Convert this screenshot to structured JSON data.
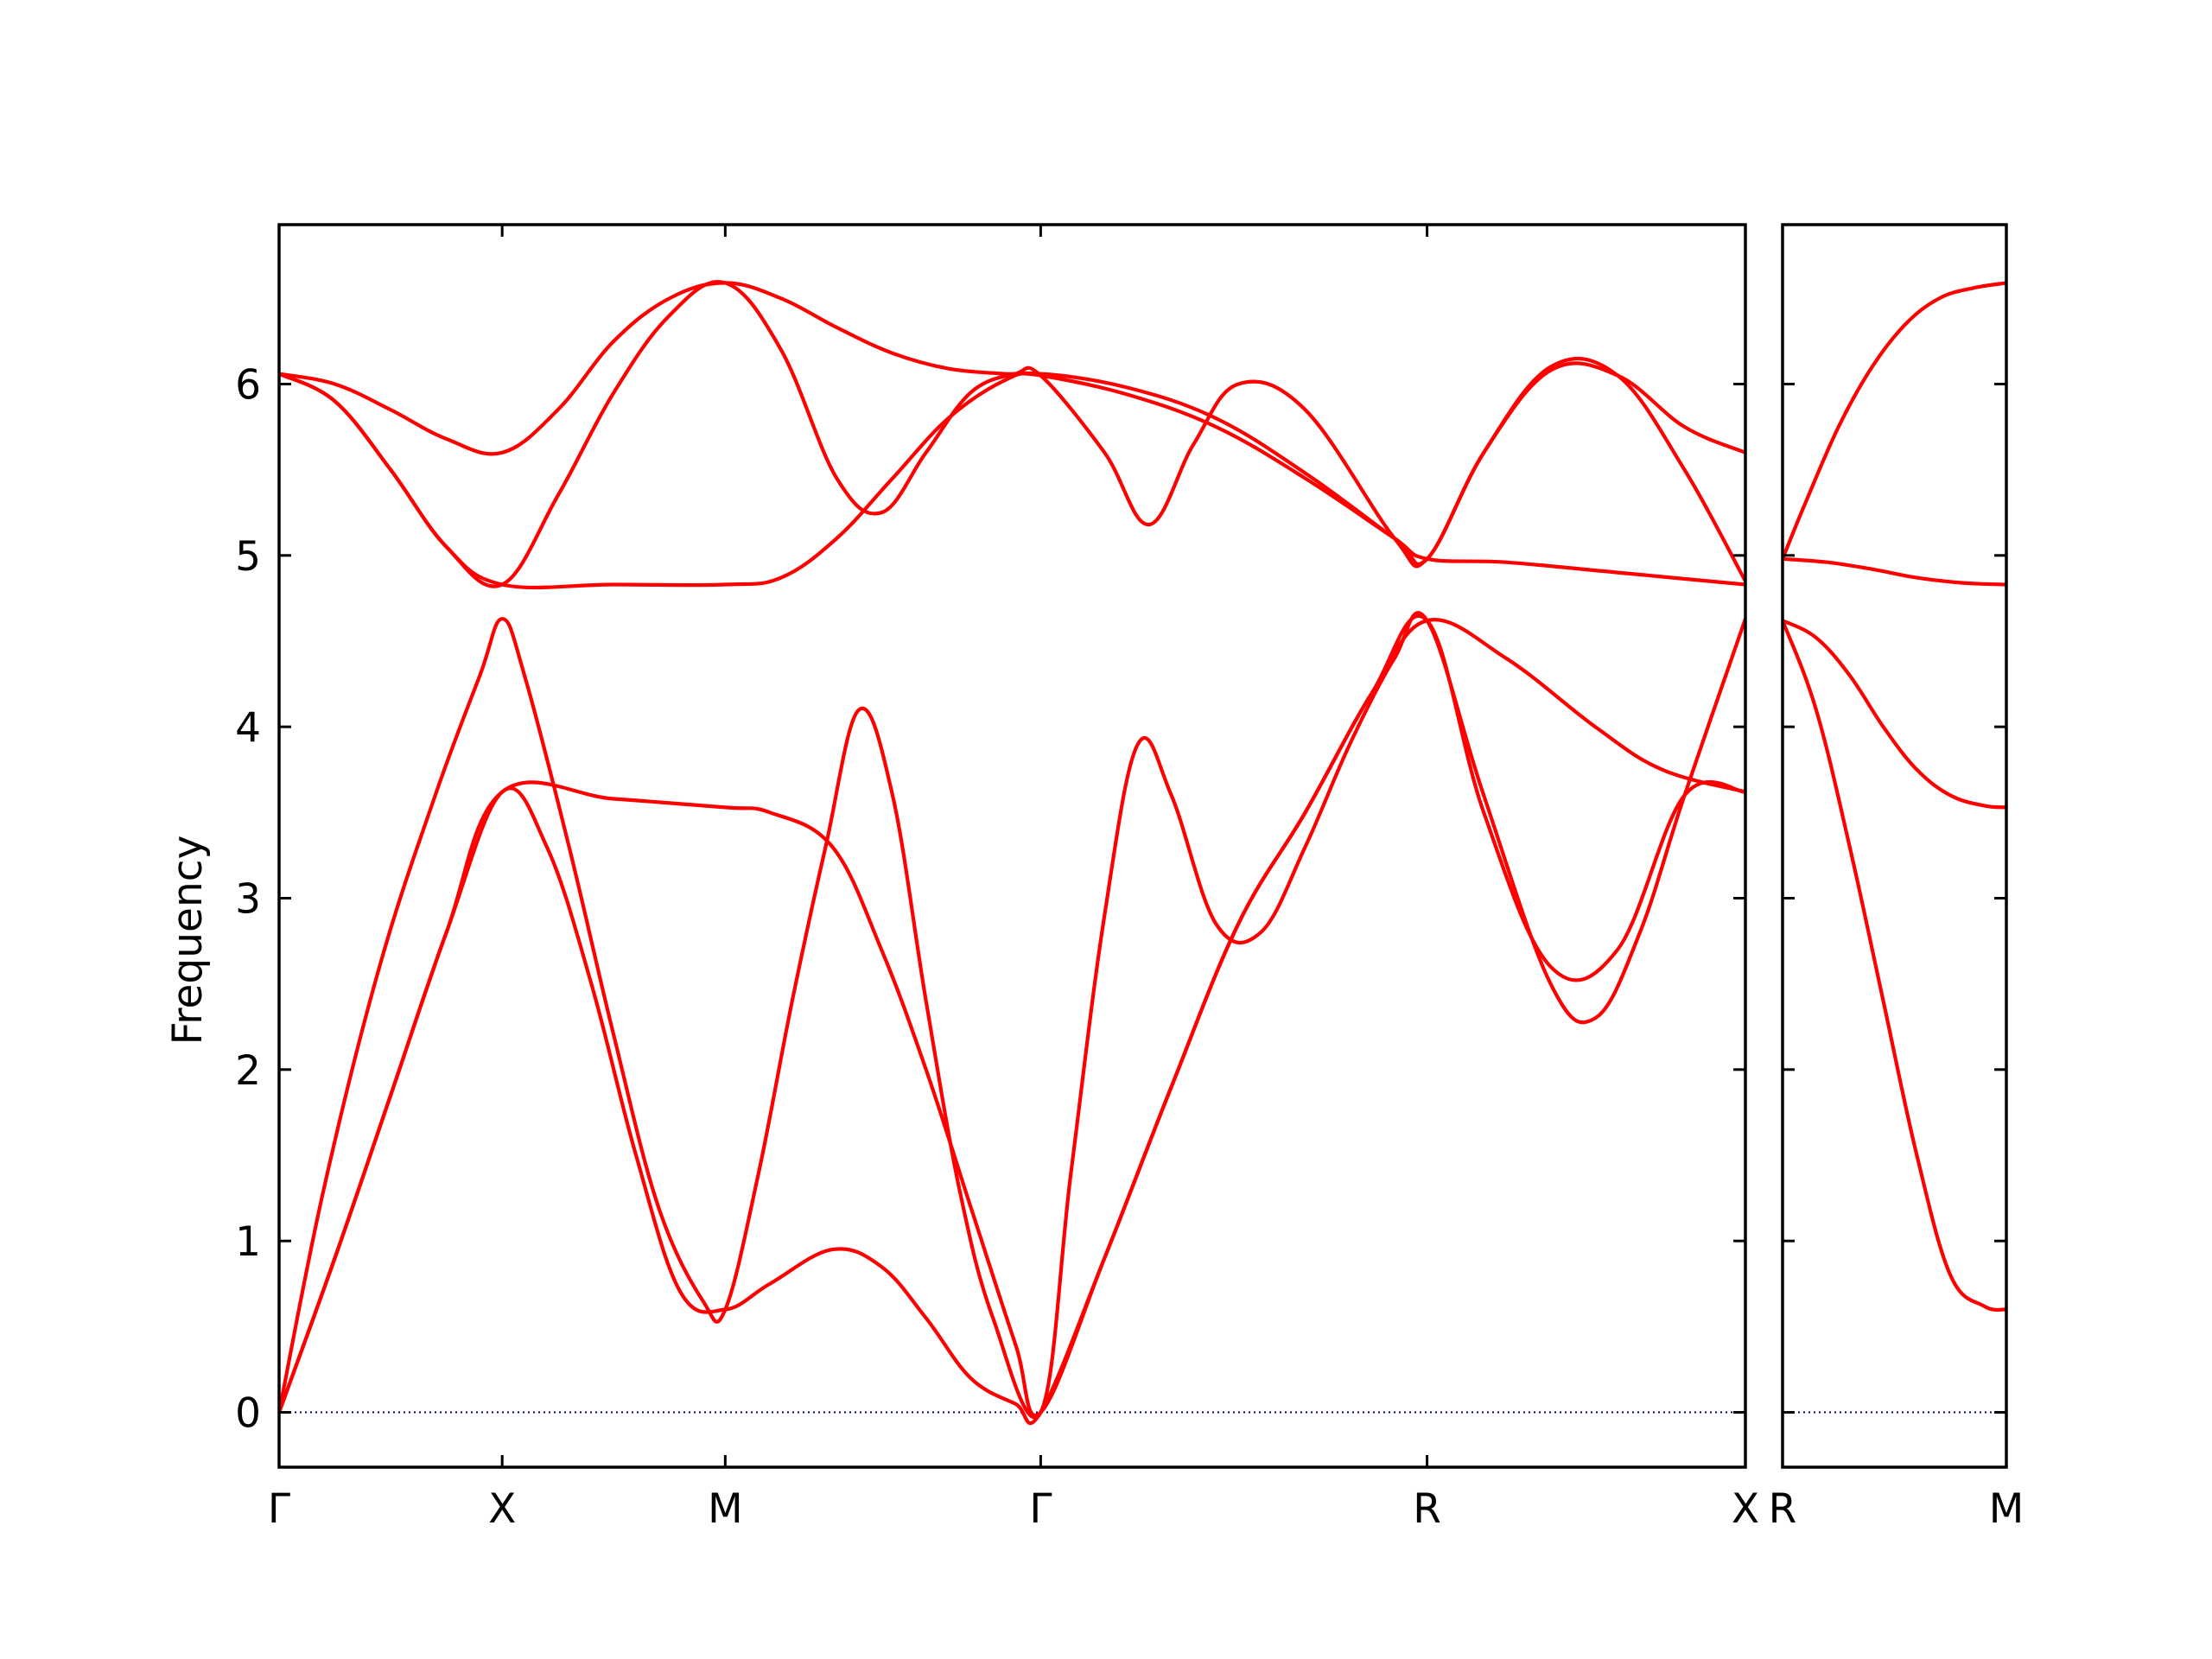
{
  "chart_data": {
    "type": "line",
    "ylabel": "Frequency",
    "ylim": [
      -0.32,
      6.93
    ],
    "yticks": [
      0,
      1,
      2,
      3,
      4,
      5,
      6
    ],
    "grid": false,
    "colors": {
      "bands": "#ff0000",
      "zero_line": "#00008b",
      "axes": "#000000"
    },
    "panels": [
      {
        "xlim": [
          0,
          6.573
        ],
        "xticks": [
          {
            "x": 0,
            "label": "Γ"
          },
          {
            "x": 1.0,
            "label": "X"
          },
          {
            "x": 2.0,
            "label": "M"
          },
          {
            "x": 3.414,
            "label": "Γ"
          },
          {
            "x": 5.146,
            "label": "R"
          },
          {
            "x": 6.573,
            "label": "X"
          }
        ],
        "series": [
          {
            "x": [
              0,
              0.25,
              0.5,
              0.75,
              1.0,
              1.25,
              1.5,
              1.75,
              2.0,
              2.25,
              2.5,
              2.75,
              3.0,
              3.25,
              3.414,
              3.8,
              4.2,
              4.6,
              5.0,
              5.146,
              5.4,
              5.7,
              6.0,
              6.3,
              6.573
            ],
            "values": [
              6.06,
              6.0,
              5.85,
              5.68,
              5.6,
              5.85,
              6.25,
              6.5,
              6.59,
              6.5,
              6.33,
              6.18,
              6.09,
              6.06,
              6.05,
              5.94,
              5.75,
              5.45,
              5.1,
              4.98,
              5.6,
              6.08,
              6.05,
              5.75,
              5.6
            ]
          },
          {
            "x": [
              0,
              0.25,
              0.5,
              0.75,
              1.0,
              1.25,
              1.5,
              1.75,
              2.0,
              2.25,
              2.5,
              2.7,
              2.9,
              3.1,
              3.3,
              3.414,
              3.7,
              3.9,
              4.1,
              4.3,
              4.6,
              5.0,
              5.146,
              5.4,
              5.7,
              6.0,
              6.3,
              6.573
            ],
            "values": [
              6.06,
              5.9,
              5.5,
              5.05,
              4.83,
              5.35,
              5.95,
              6.4,
              6.59,
              6.2,
              5.45,
              5.25,
              5.6,
              5.95,
              6.06,
              6.05,
              5.6,
              5.18,
              5.65,
              6.0,
              5.85,
              5.1,
              4.98,
              5.6,
              6.1,
              6.05,
              5.5,
              4.85
            ]
          },
          {
            "x": [
              0,
              0.25,
              0.5,
              0.75,
              1.0,
              1.5,
              2.0,
              2.25,
              2.5,
              2.75,
              3.0,
              3.25,
              3.414,
              3.8,
              4.2,
              4.6,
              5.0,
              5.146,
              5.5,
              6.0,
              6.573
            ],
            "values": [
              6.06,
              5.9,
              5.5,
              5.05,
              4.83,
              4.83,
              4.83,
              4.87,
              5.1,
              5.45,
              5.8,
              6.02,
              6.06,
              5.98,
              5.8,
              5.48,
              5.1,
              4.98,
              4.96,
              4.9,
              4.83
            ]
          },
          {
            "x": [
              0,
              0.2,
              0.45,
              0.7,
              0.9,
              1.0,
              1.1,
              1.3,
              1.5,
              1.7,
              1.9,
              2.0,
              2.15,
              2.3,
              2.45,
              2.6,
              2.75,
              2.9,
              3.05,
              3.2,
              3.414,
              3.55,
              3.7,
              3.85,
              4.0,
              4.2,
              4.4,
              4.6,
              4.8,
              5.0,
              5.146,
              5.4,
              5.7,
              5.9,
              6.1,
              6.3,
              6.573
            ],
            "values": [
              0.0,
              1.3,
              2.6,
              3.6,
              4.3,
              4.63,
              4.3,
              3.3,
              2.2,
              1.2,
              0.65,
              0.6,
              1.4,
              2.4,
              3.3,
              4.1,
              3.6,
              2.4,
              1.3,
              0.55,
              0.0,
              1.4,
              2.9,
              3.9,
              3.6,
              2.85,
              2.8,
              3.3,
              3.9,
              4.4,
              4.62,
              3.6,
              2.5,
              2.3,
              2.8,
              3.6,
              4.63
            ]
          },
          {
            "x": [
              0,
              0.25,
              0.5,
              0.75,
              1.0,
              1.2,
              1.4,
              1.6,
              1.8,
              2.0,
              2.2,
              2.48,
              2.7,
              2.9,
              3.1,
              3.3,
              3.414,
              3.7,
              4.0,
              4.3,
              4.6,
              4.9,
              5.146,
              5.4,
              5.7,
              6.0,
              6.3,
              6.573
            ],
            "values": [
              0.0,
              0.9,
              1.85,
              2.8,
              3.62,
              3.3,
              2.5,
              1.5,
              0.7,
              0.6,
              0.75,
              0.95,
              0.85,
              0.55,
              0.2,
              0.05,
              0.0,
              0.9,
              1.9,
              2.85,
              3.5,
              4.2,
              4.62,
              3.5,
              2.6,
              2.7,
              3.6,
              3.62
            ]
          },
          {
            "x": [
              0,
              0.25,
              0.5,
              0.75,
              1.0,
              1.5,
              2.0,
              2.2,
              2.48,
              2.7,
              2.9,
              3.1,
              3.3,
              3.414,
              3.7,
              4.0,
              4.3,
              4.6,
              4.9,
              5.146,
              5.5,
              5.9,
              6.2,
              6.573
            ],
            "values": [
              0.0,
              0.9,
              1.85,
              2.8,
              3.62,
              3.58,
              3.53,
              3.5,
              3.3,
              2.7,
              2.0,
              1.2,
              0.4,
              0.0,
              0.9,
              1.9,
              2.85,
              3.5,
              4.2,
              4.62,
              4.4,
              4.0,
              3.75,
              3.62
            ]
          }
        ]
      },
      {
        "xlim": [
          0,
          1.0
        ],
        "xticks": [
          {
            "x": 0,
            "label": "R"
          },
          {
            "x": 1.0,
            "label": "M"
          }
        ],
        "series": [
          {
            "x": [
              0,
              0.1,
              0.25,
              0.4,
              0.55,
              0.7,
              0.85,
              1.0
            ],
            "values": [
              4.98,
              5.3,
              5.75,
              6.1,
              6.35,
              6.5,
              6.56,
              6.59
            ]
          },
          {
            "x": [
              0,
              0.2,
              0.4,
              0.6,
              0.8,
              1.0
            ],
            "values": [
              4.98,
              4.96,
              4.92,
              4.87,
              4.84,
              4.83
            ]
          },
          {
            "x": [
              0,
              0.15,
              0.3,
              0.45,
              0.6,
              0.75,
              0.9,
              1.0
            ],
            "values": [
              4.62,
              4.52,
              4.3,
              4.0,
              3.75,
              3.6,
              3.54,
              3.53
            ]
          },
          {
            "x": [
              0,
              0.15,
              0.3,
              0.45,
              0.6,
              0.75,
              0.9,
              1.0
            ],
            "values": [
              4.62,
              4.1,
              3.3,
              2.4,
              1.5,
              0.8,
              0.62,
              0.6
            ]
          }
        ]
      }
    ]
  }
}
